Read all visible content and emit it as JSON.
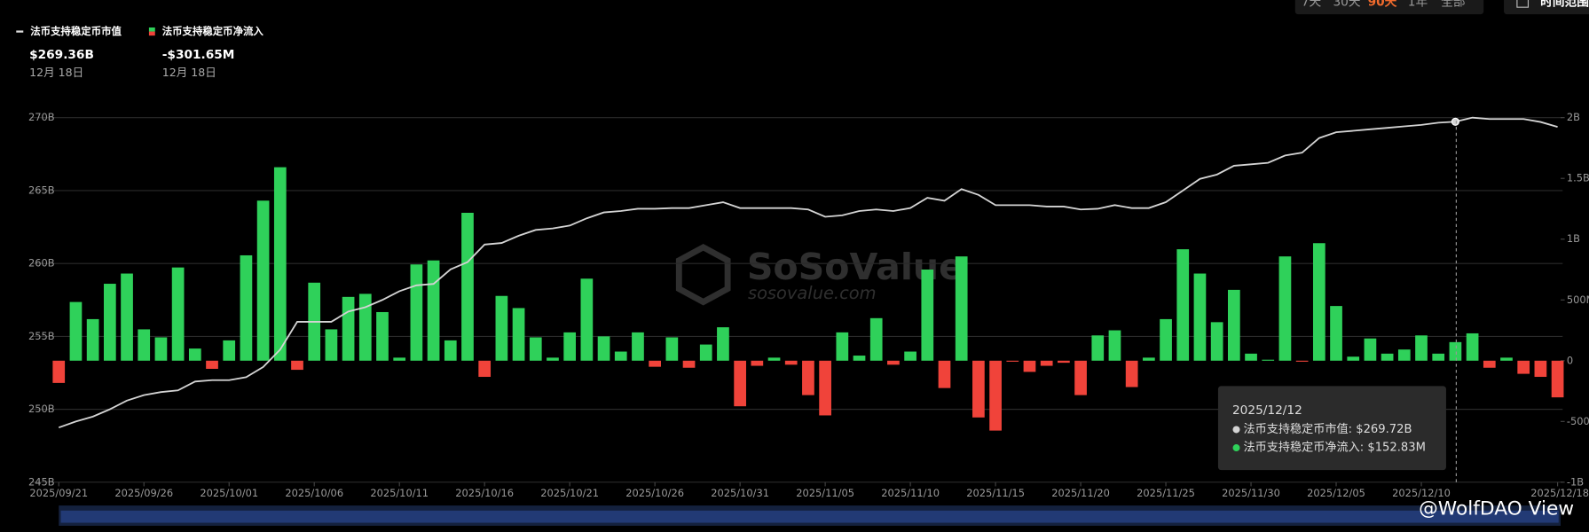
{
  "controls": {
    "ranges": [
      "7天",
      "30天",
      "90天",
      "1年",
      "全部"
    ],
    "active": 2,
    "range_button": "时间范围"
  },
  "summary": [
    {
      "value_label": "$269.36B",
      "date": "12月 18日"
    },
    {
      "value_label": "-$301.65M",
      "date": "12月 18日"
    }
  ],
  "tooltip": {
    "date": "2025/12/12",
    "lines": [
      "法币支持稳定币市值: $269.72B",
      "法币支持稳定币净流入: $152.83M"
    ]
  },
  "watermark": {
    "brand": "SoSoValue",
    "site": "sosovalue.com",
    "credit": "@WolfDAO View"
  },
  "chart_data": {
    "type": "combo",
    "x": [
      "2025/09/21",
      "2025/09/22",
      "2025/09/23",
      "2025/09/24",
      "2025/09/25",
      "2025/09/26",
      "2025/09/27",
      "2025/09/28",
      "2025/09/29",
      "2025/09/30",
      "2025/10/01",
      "2025/10/02",
      "2025/10/03",
      "2025/10/04",
      "2025/10/05",
      "2025/10/06",
      "2025/10/07",
      "2025/10/08",
      "2025/10/09",
      "2025/10/10",
      "2025/10/11",
      "2025/10/12",
      "2025/10/13",
      "2025/10/14",
      "2025/10/15",
      "2025/10/16",
      "2025/10/17",
      "2025/10/18",
      "2025/10/19",
      "2025/10/20",
      "2025/10/21",
      "2025/10/22",
      "2025/10/23",
      "2025/10/24",
      "2025/10/25",
      "2025/10/26",
      "2025/10/27",
      "2025/10/28",
      "2025/10/29",
      "2025/10/30",
      "2025/10/31",
      "2025/11/01",
      "2025/11/02",
      "2025/11/03",
      "2025/11/04",
      "2025/11/05",
      "2025/11/06",
      "2025/11/07",
      "2025/11/08",
      "2025/11/09",
      "2025/11/10",
      "2025/11/11",
      "2025/11/12",
      "2025/11/13",
      "2025/11/14",
      "2025/11/15",
      "2025/11/16",
      "2025/11/17",
      "2025/11/18",
      "2025/11/19",
      "2025/11/20",
      "2025/11/21",
      "2025/11/22",
      "2025/11/23",
      "2025/11/24",
      "2025/11/25",
      "2025/11/26",
      "2025/11/27",
      "2025/11/28",
      "2025/11/29",
      "2025/11/30",
      "2025/12/01",
      "2025/12/02",
      "2025/12/03",
      "2025/12/04",
      "2025/12/05",
      "2025/12/06",
      "2025/12/07",
      "2025/12/08",
      "2025/12/09",
      "2025/12/10",
      "2025/12/11",
      "2025/12/12",
      "2025/12/13",
      "2025/12/14",
      "2025/12/15",
      "2025/12/16",
      "2025/12/17",
      "2025/12/18"
    ],
    "xticks": [
      "2025/09/21",
      "2025/09/26",
      "2025/10/01",
      "2025/10/06",
      "2025/10/11",
      "2025/10/16",
      "2025/10/21",
      "2025/10/26",
      "2025/10/31",
      "2025/11/05",
      "2025/11/10",
      "2025/11/15",
      "2025/11/20",
      "2025/11/25",
      "2025/11/30",
      "2025/12/05",
      "2025/12/10",
      "2025/12/18"
    ],
    "ylim": [
      245,
      270
    ],
    "yticks": [
      {
        "value": 245,
        "label": "245B"
      },
      {
        "value": 250,
        "label": "250B"
      },
      {
        "value": 255,
        "label": "255B"
      },
      {
        "value": 260,
        "label": "260B"
      },
      {
        "value": 265,
        "label": "265B"
      },
      {
        "value": 270,
        "label": "270B"
      }
    ],
    "y2lim": [
      -1000,
      2000
    ],
    "y2ticks": [
      {
        "value": -1000,
        "label": "-1B"
      },
      {
        "value": -500,
        "label": "-500M"
      },
      0,
      {
        "value": 500,
        "label": "500M"
      },
      {
        "value": 1000,
        "label": "1B"
      },
      {
        "value": 1500,
        "label": "1.5B"
      },
      {
        "value": 2000,
        "label": "2B"
      }
    ],
    "grid": true,
    "series": [
      {
        "name": "法币支持稳定币市值",
        "kind": "line",
        "color": "#d4d4d4",
        "values": [
          248.75,
          249.17,
          249.5,
          250.0,
          250.6,
          250.97,
          251.18,
          251.3,
          251.9,
          252.0,
          252.0,
          252.2,
          252.9,
          254.1,
          256.0,
          256.0,
          256.0,
          256.7,
          257.0,
          257.5,
          258.1,
          258.5,
          258.6,
          259.6,
          260.1,
          261.3,
          261.4,
          261.9,
          262.3,
          262.4,
          262.6,
          263.1,
          263.5,
          263.6,
          263.75,
          263.75,
          263.8,
          263.8,
          264.0,
          264.2,
          263.8,
          263.8,
          263.8,
          263.8,
          263.7,
          263.2,
          263.3,
          263.6,
          263.7,
          263.6,
          263.8,
          264.5,
          264.3,
          265.1,
          264.7,
          264.0,
          264.0,
          264.0,
          263.9,
          263.9,
          263.7,
          263.75,
          264.0,
          263.8,
          263.8,
          264.2,
          265.0,
          265.8,
          266.1,
          266.7,
          266.8,
          266.9,
          267.4,
          267.6,
          268.6,
          269.0,
          269.1,
          269.2,
          269.3,
          269.4,
          269.5,
          269.65,
          269.72,
          270.0,
          269.9,
          269.9,
          269.9,
          269.7,
          269.36
        ]
      },
      {
        "name": "法币支持稳定币净流入",
        "kind": "bar",
        "axis": "y2",
        "color": "#2fd15a",
        "negative_color": "#f0433a",
        "values": [
          -183,
          483,
          342,
          633,
          717,
          258,
          192,
          767,
          100,
          -67,
          167,
          867,
          1317,
          1592,
          -75,
          642,
          258,
          525,
          550,
          400,
          25,
          792,
          825,
          167,
          1217,
          -133,
          533,
          433,
          192,
          25,
          233,
          675,
          200,
          75,
          233,
          -50,
          192,
          -58,
          133,
          275,
          -375,
          -42,
          25,
          -33,
          -283,
          -450,
          233,
          42,
          350,
          -33,
          75,
          750,
          -225,
          858,
          -467,
          -575,
          -8,
          -92,
          -42,
          -17,
          -283,
          208,
          250,
          -217,
          25,
          342,
          917,
          717,
          317,
          583,
          58,
          8,
          858,
          -8,
          967,
          450,
          33,
          183,
          58,
          92,
          208,
          58,
          152.83,
          225,
          -58,
          25,
          -108,
          -133,
          -301.65
        ]
      }
    ]
  }
}
